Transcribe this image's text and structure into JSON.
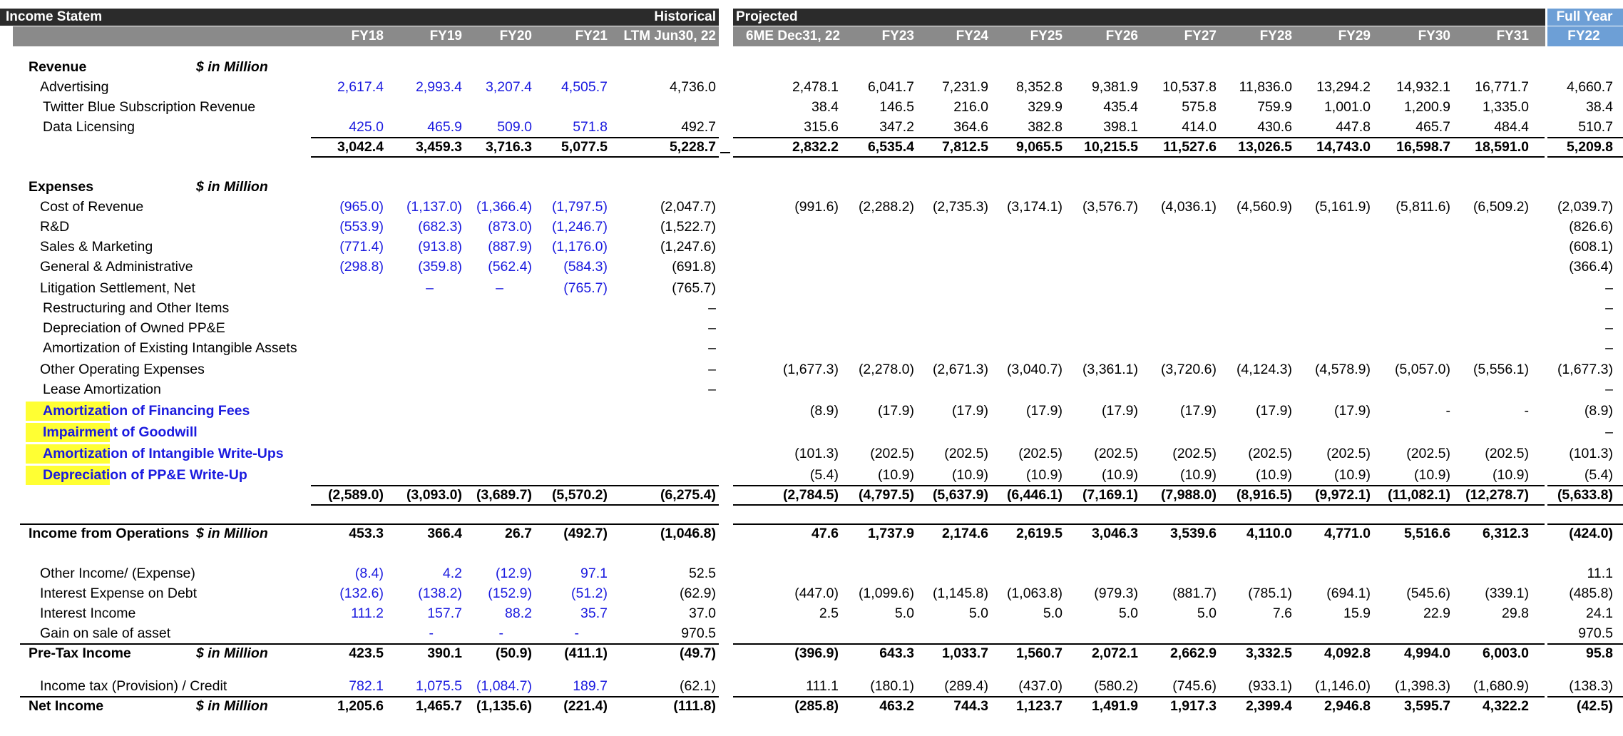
{
  "header": {
    "title": "Income Statem",
    "historical": "Historical",
    "projected": "Projected",
    "full_year": "Full Year"
  },
  "columns": [
    "FY18",
    "FY19",
    "FY20",
    "FY21",
    "LTM Jun30, 22",
    "6ME Dec31, 22",
    "FY23",
    "FY24",
    "FY25",
    "FY26",
    "FY27",
    "FY28",
    "FY29",
    "FY30",
    "FY31",
    "FY22"
  ],
  "colors": {
    "header_dark": "#2b2b2b",
    "header_gray": "#8a8a8a",
    "header_blue": "#6d9fd6",
    "input_blue": "#1a1adf",
    "highlight": "#ffff33"
  },
  "rows": [
    {
      "label": "Revenue",
      "unit": "$ in Million",
      "style": "section",
      "vals": []
    },
    {
      "label": "Advertising",
      "style": "item",
      "vals": [
        "2,617.4",
        "2,993.4",
        "3,207.4",
        "4,505.7",
        "4,736.0",
        "2,478.1",
        "6,041.7",
        "7,231.9",
        "8,352.8",
        "9,381.9",
        "10,537.8",
        "11,836.0",
        "13,294.2",
        "14,932.1",
        "16,771.7",
        "4,660.7"
      ]
    },
    {
      "label": "Twitter Blue Subscription Revenue",
      "style": "item2",
      "vals": [
        "",
        "",
        "",
        "",
        "",
        "38.4",
        "146.5",
        "216.0",
        "329.9",
        "435.4",
        "575.8",
        "759.9",
        "1,001.0",
        "1,200.9",
        "1,335.0",
        "38.4"
      ]
    },
    {
      "label": "Data Licensing",
      "style": "item2",
      "vals": [
        "425.0",
        "465.9",
        "509.0",
        "571.8",
        "492.7",
        "315.6",
        "347.2",
        "364.6",
        "382.8",
        "398.1",
        "414.0",
        "430.6",
        "447.8",
        "465.7",
        "484.4",
        "510.7"
      ]
    },
    {
      "label": "",
      "style": "total",
      "vals": [
        "3,042.4",
        "3,459.3",
        "3,716.3",
        "5,077.5",
        "5,228.7",
        "2,832.2",
        "6,535.4",
        "7,812.5",
        "9,065.5",
        "10,215.5",
        "11,527.6",
        "13,026.5",
        "14,743.0",
        "16,598.7",
        "18,591.0",
        "5,209.8"
      ]
    },
    {
      "label": "Expenses",
      "unit": "$ in Million",
      "style": "section",
      "vals": []
    },
    {
      "label": "Cost of Revenue",
      "style": "item",
      "vals": [
        "(965.0)",
        "(1,137.0)",
        "(1,366.4)",
        "(1,797.5)",
        "(2,047.7)",
        "(991.6)",
        "(2,288.2)",
        "(2,735.3)",
        "(3,174.1)",
        "(3,576.7)",
        "(4,036.1)",
        "(4,560.9)",
        "(5,161.9)",
        "(5,811.6)",
        "(6,509.2)",
        "(2,039.7)"
      ]
    },
    {
      "label": "R&D",
      "style": "item",
      "vals": [
        "(553.9)",
        "(682.3)",
        "(873.0)",
        "(1,246.7)",
        "(1,522.7)",
        "",
        "",
        "",
        "",
        "",
        "",
        "",
        "",
        "",
        "",
        "(826.6)"
      ]
    },
    {
      "label": "Sales & Marketing",
      "style": "item",
      "vals": [
        "(771.4)",
        "(913.8)",
        "(887.9)",
        "(1,176.0)",
        "(1,247.6)",
        "",
        "",
        "",
        "",
        "",
        "",
        "",
        "",
        "",
        "",
        "(608.1)"
      ]
    },
    {
      "label": "General & Administrative",
      "style": "item",
      "vals": [
        "(298.8)",
        "(359.8)",
        "(562.4)",
        "(584.3)",
        "(691.8)",
        "",
        "",
        "",
        "",
        "",
        "",
        "",
        "",
        "",
        "",
        "(366.4)"
      ]
    },
    {
      "label": "Litigation Settlement, Net",
      "style": "item",
      "vals": [
        "",
        "–",
        "–",
        "(765.7)",
        "(765.7)",
        "",
        "",
        "",
        "",
        "",
        "",
        "",
        "",
        "",
        "",
        "–"
      ]
    },
    {
      "label": "Restructuring and Other Items",
      "style": "item2",
      "vals": [
        "",
        "",
        "",
        "",
        "–",
        "",
        "",
        "",
        "",
        "",
        "",
        "",
        "",
        "",
        "",
        "–"
      ]
    },
    {
      "label": "Depreciation of Owned PP&E",
      "style": "item2",
      "vals": [
        "",
        "",
        "",
        "",
        "–",
        "",
        "",
        "",
        "",
        "",
        "",
        "",
        "",
        "",
        "",
        "–"
      ]
    },
    {
      "label": "Amortization of Existing Intangible Assets",
      "style": "item2",
      "vals": [
        "",
        "",
        "",
        "",
        "–",
        "",
        "",
        "",
        "",
        "",
        "",
        "",
        "",
        "",
        "",
        "–"
      ]
    },
    {
      "label": "Other Operating Expenses",
      "style": "item",
      "vals": [
        "",
        "",
        "",
        "",
        "–",
        "(1,677.3)",
        "(2,278.0)",
        "(2,671.3)",
        "(3,040.7)",
        "(3,361.1)",
        "(3,720.6)",
        "(4,124.3)",
        "(4,578.9)",
        "(5,057.0)",
        "(5,556.1)",
        "(1,677.3)"
      ]
    },
    {
      "label": "Lease Amortization",
      "style": "item2",
      "vals": [
        "",
        "",
        "",
        "",
        "–",
        "",
        "",
        "",
        "",
        "",
        "",
        "",
        "",
        "",
        "",
        "–"
      ]
    },
    {
      "label": "Amortization of Financing Fees",
      "style": "blue",
      "vals": [
        "",
        "",
        "",
        "",
        "",
        "(8.9)",
        "(17.9)",
        "(17.9)",
        "(17.9)",
        "(17.9)",
        "(17.9)",
        "(17.9)",
        "(17.9)",
        "-",
        "-",
        "(8.9)"
      ]
    },
    {
      "label": "Impairment of Goodwill",
      "style": "blue",
      "vals": [
        "",
        "",
        "",
        "",
        "",
        "",
        "",
        "",
        "",
        "",
        "",
        "",
        "",
        "",
        "",
        "–"
      ]
    },
    {
      "label": "Amortization of Intangible Write-Ups",
      "style": "blue",
      "vals": [
        "",
        "",
        "",
        "",
        "",
        "(101.3)",
        "(202.5)",
        "(202.5)",
        "(202.5)",
        "(202.5)",
        "(202.5)",
        "(202.5)",
        "(202.5)",
        "(202.5)",
        "(202.5)",
        "(101.3)"
      ]
    },
    {
      "label": "Depreciation of PP&E Write-Up",
      "style": "blue",
      "vals": [
        "",
        "",
        "",
        "",
        "",
        "(5.4)",
        "(10.9)",
        "(10.9)",
        "(10.9)",
        "(10.9)",
        "(10.9)",
        "(10.9)",
        "(10.9)",
        "(10.9)",
        "(10.9)",
        "(5.4)"
      ]
    },
    {
      "label": "",
      "style": "total",
      "vals": [
        "(2,589.0)",
        "(3,093.0)",
        "(3,689.7)",
        "(5,570.2)",
        "(6,275.4)",
        "(2,784.5)",
        "(4,797.5)",
        "(5,637.9)",
        "(6,446.1)",
        "(7,169.1)",
        "(7,988.0)",
        "(8,916.5)",
        "(9,972.1)",
        "(11,082.1)",
        "(12,278.7)",
        "(5,633.8)"
      ]
    },
    {
      "label": "Income from Operations",
      "unit": "$ in Million",
      "style": "total_labeled",
      "vals": [
        "453.3",
        "366.4",
        "26.7",
        "(492.7)",
        "(1,046.8)",
        "47.6",
        "1,737.9",
        "2,174.6",
        "2,619.5",
        "3,046.3",
        "3,539.6",
        "4,110.0",
        "4,771.0",
        "5,516.6",
        "6,312.3",
        "(424.0)"
      ]
    },
    {
      "label": "Other Income/ (Expense)",
      "style": "item",
      "vals": [
        "(8.4)",
        "4.2",
        "(12.9)",
        "97.1",
        "52.5",
        "",
        "",
        "",
        "",
        "",
        "",
        "",
        "",
        "",
        "",
        "11.1"
      ]
    },
    {
      "label": "Interest Expense on Debt",
      "style": "item",
      "vals": [
        "(132.6)",
        "(138.2)",
        "(152.9)",
        "(51.2)",
        "(62.9)",
        "(447.0)",
        "(1,099.6)",
        "(1,145.8)",
        "(1,063.8)",
        "(979.3)",
        "(881.7)",
        "(785.1)",
        "(694.1)",
        "(545.6)",
        "(339.1)",
        "(485.8)"
      ]
    },
    {
      "label": "Interest Income",
      "style": "item",
      "vals": [
        "111.2",
        "157.7",
        "88.2",
        "35.7",
        "37.0",
        "2.5",
        "5.0",
        "5.0",
        "5.0",
        "5.0",
        "5.0",
        "7.6",
        "15.9",
        "22.9",
        "29.8",
        "24.1"
      ]
    },
    {
      "label": "Gain on sale of asset",
      "style": "item",
      "vals": [
        "",
        "-",
        "-",
        "-",
        "970.5",
        "",
        "",
        "",
        "",
        "",
        "",
        "",
        "",
        "",
        "",
        "970.5"
      ]
    },
    {
      "label": "Pre-Tax Income",
      "unit": "$ in Million",
      "style": "total_labeled",
      "vals": [
        "423.5",
        "390.1",
        "(50.9)",
        "(411.1)",
        "(49.7)",
        "(396.9)",
        "643.3",
        "1,033.7",
        "1,560.7",
        "2,072.1",
        "2,662.9",
        "3,332.5",
        "4,092.8",
        "4,994.0",
        "6,003.0",
        "95.8"
      ]
    },
    {
      "label": "Income tax (Provision) / Credit",
      "style": "item",
      "vals": [
        "782.1",
        "1,075.5",
        "(1,084.7)",
        "189.7",
        "(62.1)",
        "111.1",
        "(180.1)",
        "(289.4)",
        "(437.0)",
        "(580.2)",
        "(745.6)",
        "(933.1)",
        "(1,146.0)",
        "(1,398.3)",
        "(1,680.9)",
        "(138.3)"
      ]
    },
    {
      "label": "Net Income",
      "unit": "$ in Million",
      "style": "total_labeled",
      "vals": [
        "1,205.6",
        "1,465.7",
        "(1,135.6)",
        "(221.4)",
        "(111.8)",
        "(285.8)",
        "463.2",
        "744.3",
        "1,123.7",
        "1,491.9",
        "1,917.3",
        "2,399.4",
        "2,946.8",
        "3,595.7",
        "4,322.2",
        "(42.5)"
      ]
    }
  ]
}
